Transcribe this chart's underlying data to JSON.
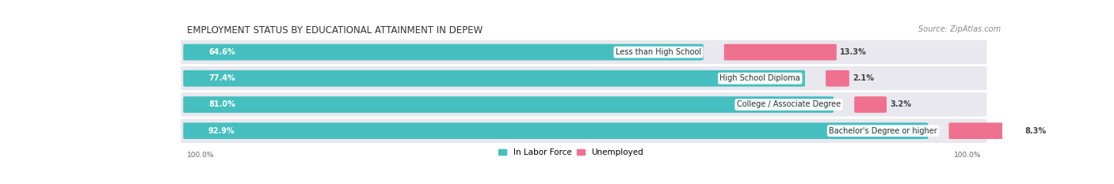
{
  "title": "EMPLOYMENT STATUS BY EDUCATIONAL ATTAINMENT IN DEPEW",
  "source": "Source: ZipAtlas.com",
  "categories": [
    "Less than High School",
    "High School Diploma",
    "College / Associate Degree",
    "Bachelor's Degree or higher"
  ],
  "in_labor_force": [
    64.6,
    77.4,
    81.0,
    92.9
  ],
  "unemployed": [
    13.3,
    2.1,
    3.2,
    8.3
  ],
  "labor_force_color": "#45BFBF",
  "unemployed_color": "#F07090",
  "row_bg_color": "#E8E8EE",
  "bg_color": "#FFFFFF",
  "axis_label_left": "100.0%",
  "axis_label_right": "100.0%",
  "legend_labor": "In Labor Force",
  "legend_unemployed": "Unemployed",
  "title_fontsize": 8.5,
  "source_fontsize": 7,
  "bar_label_fontsize": 7,
  "category_fontsize": 7,
  "legend_fontsize": 7.5
}
